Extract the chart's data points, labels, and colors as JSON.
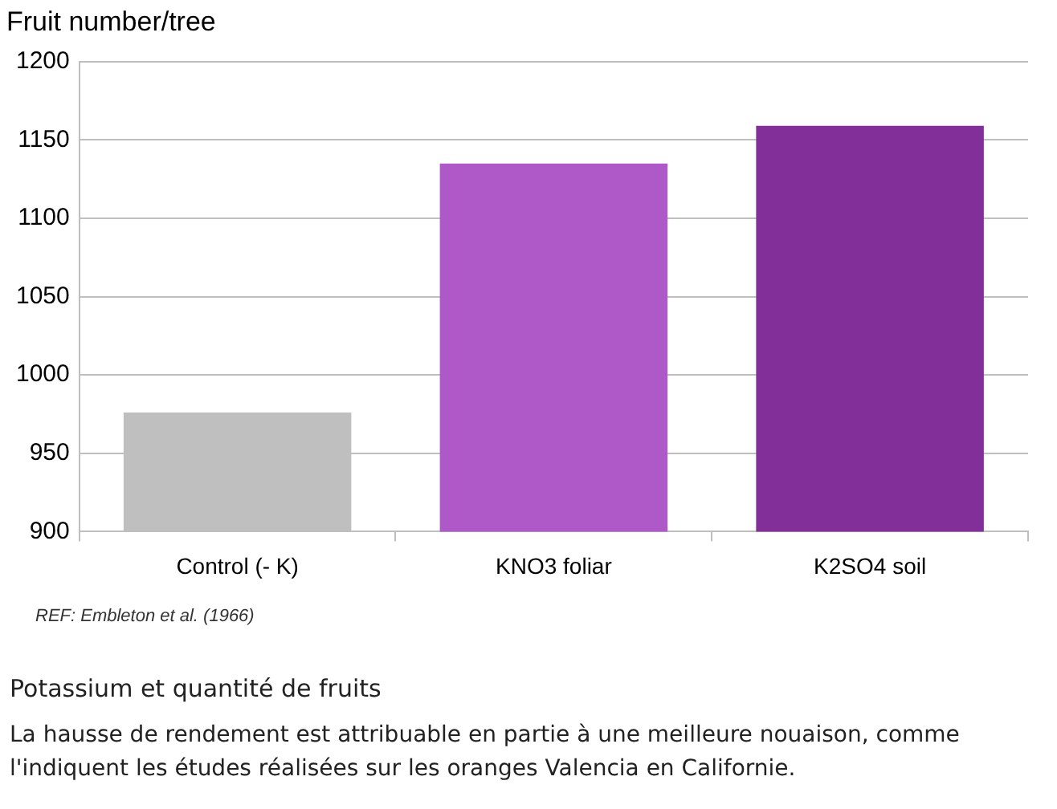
{
  "chart_data": {
    "type": "bar",
    "ylabel": "Fruit number/tree",
    "categories": [
      "Control (- K)",
      "KNO3 foliar",
      "K2SO4 soil"
    ],
    "values": [
      976,
      1135,
      1159
    ],
    "colors": [
      "#bfbfbf",
      "#af59c9",
      "#832f9a"
    ],
    "ylim": [
      900,
      1200
    ],
    "yticks": [
      900,
      950,
      1000,
      1050,
      1100,
      1150,
      1200
    ],
    "grid": "y",
    "annotations": [
      "REF: Embleton et al. (1966)",
      "Potassium et quantité de fruits",
      "La hausse de rendement est attribuable en partie à une meilleure nouaison, comme l'indiquent les études réalisées sur les oranges Valencia en Californie."
    ]
  }
}
